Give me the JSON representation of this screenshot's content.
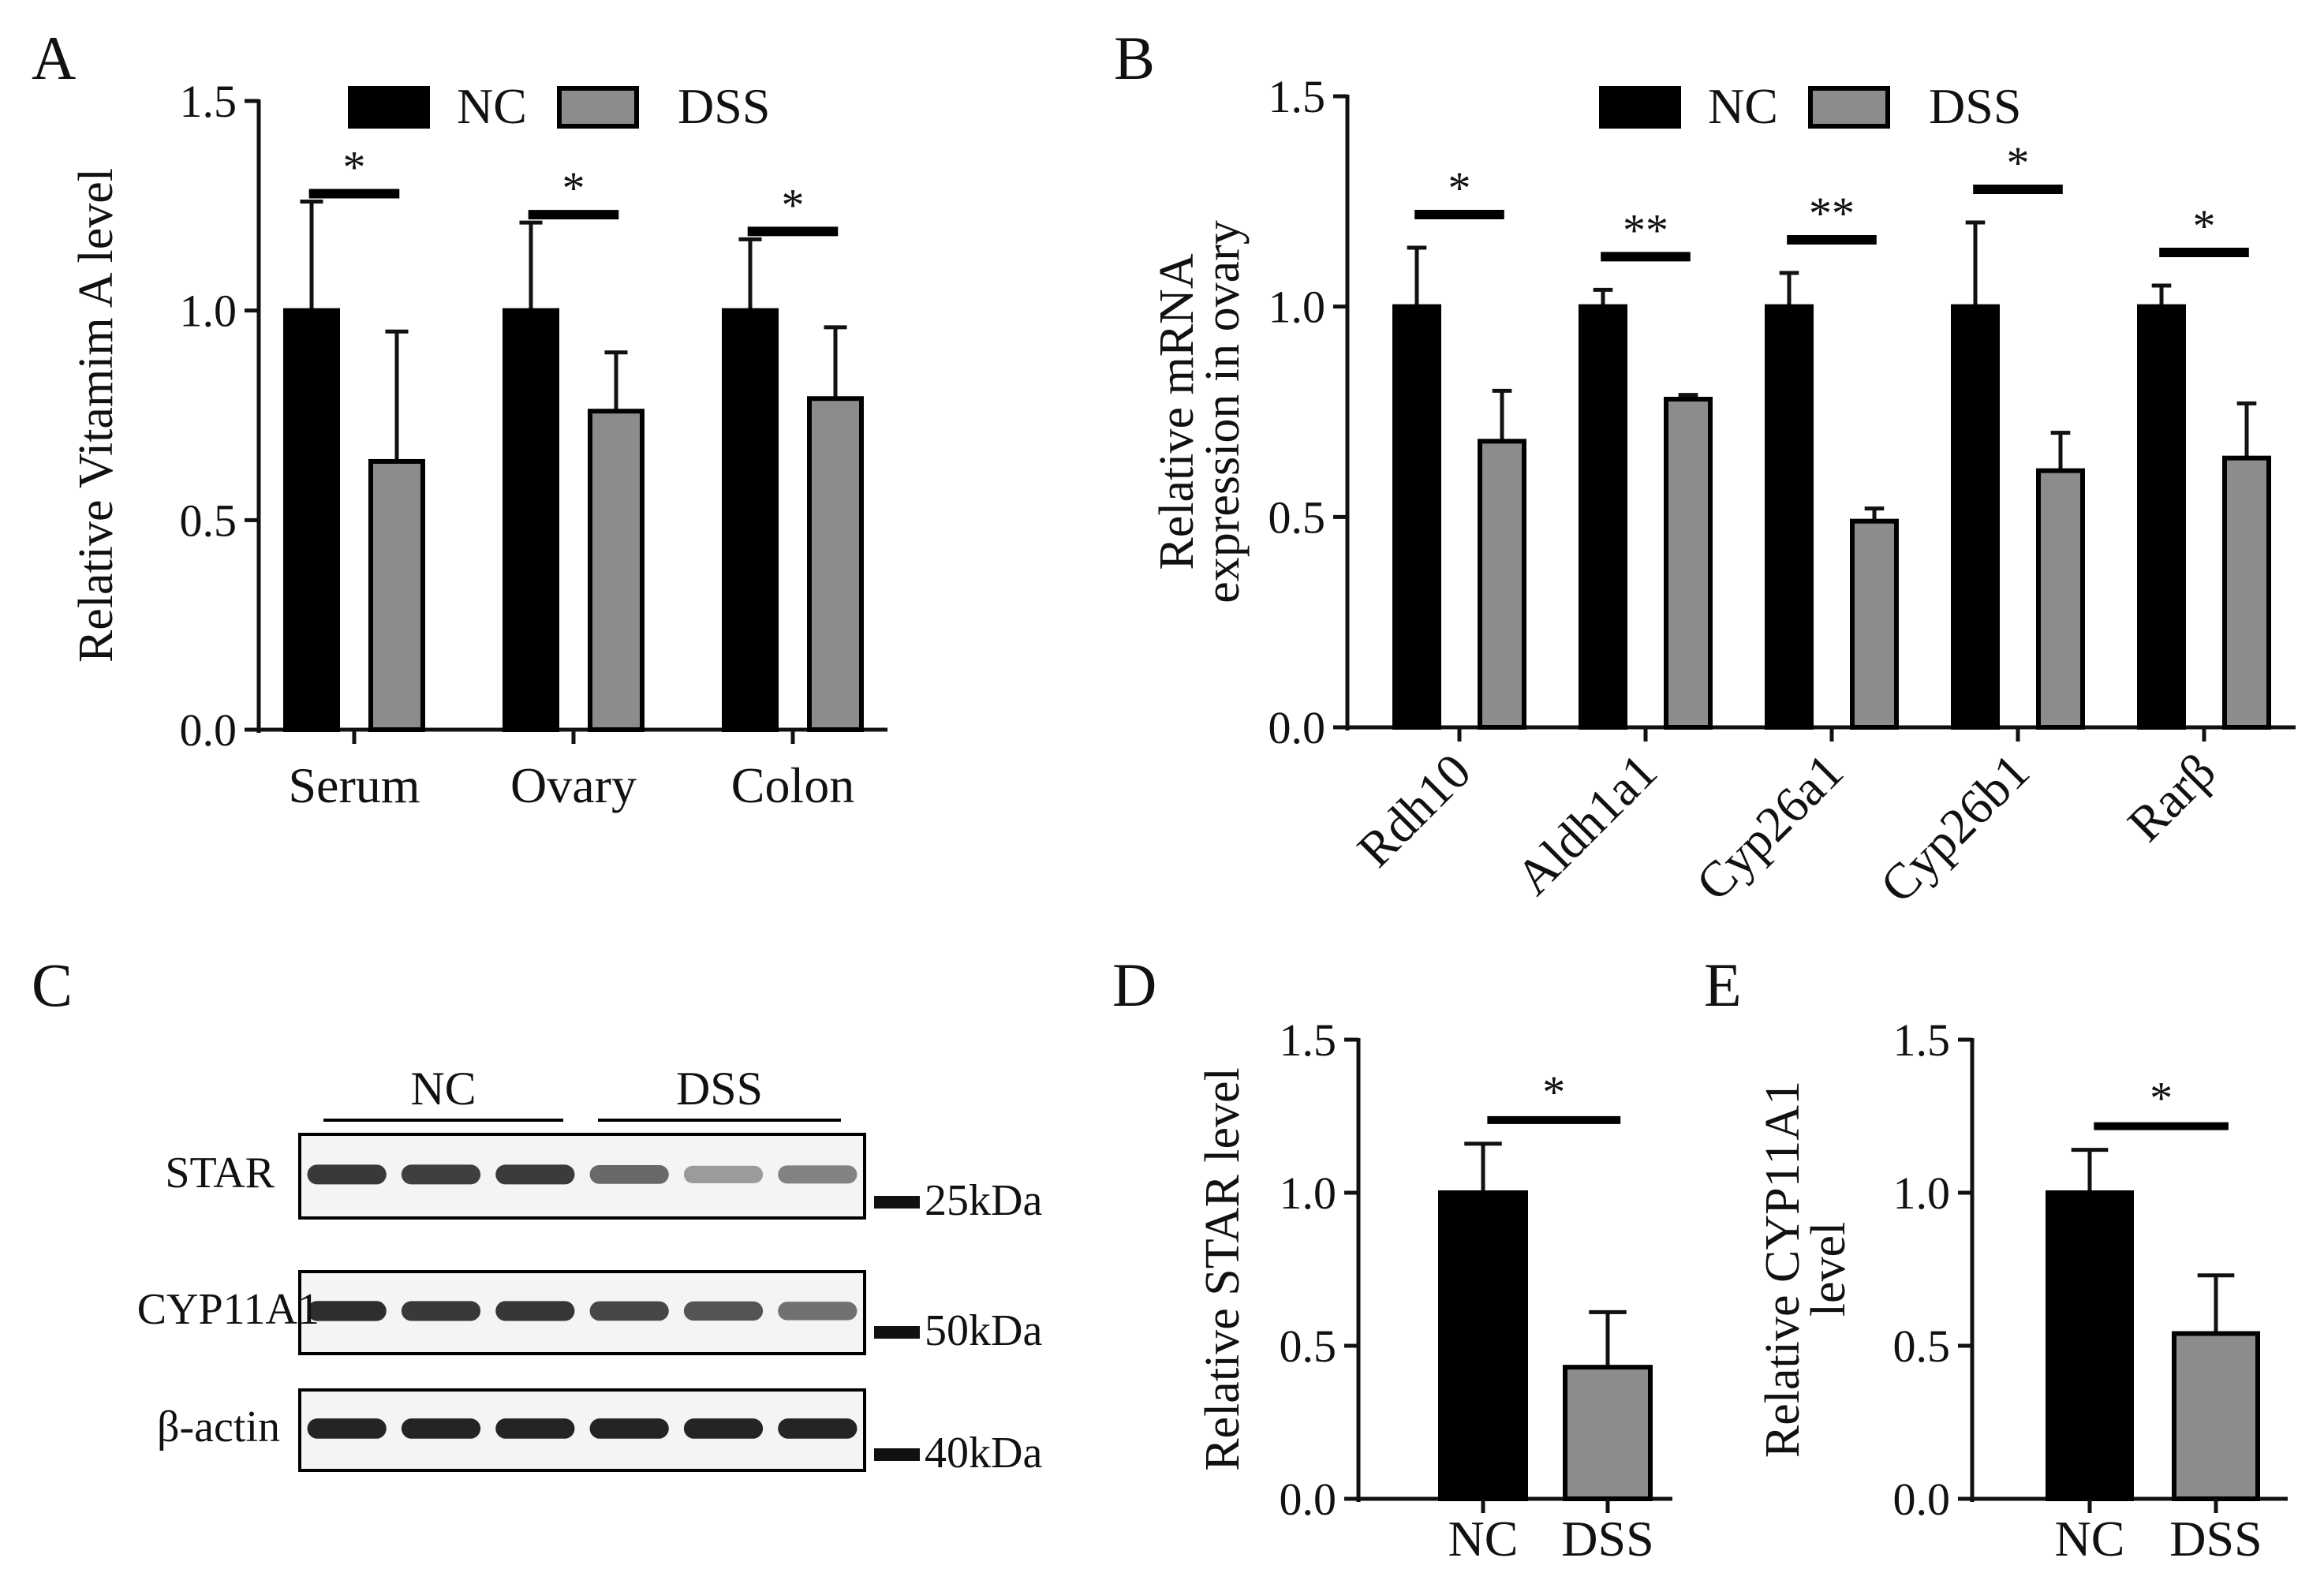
{
  "colors": {
    "nc": "#000000",
    "dss": "#8c8c8c",
    "axis": "#111111"
  },
  "chart_data": [
    {
      "panel": "A",
      "type": "bar",
      "title": "",
      "xlabel": "",
      "ylabel": "Relative Vitamim A level",
      "ylim": [
        0,
        1.5
      ],
      "yticks": [
        "0.0",
        "0.5",
        "1.0",
        "1.5"
      ],
      "categories": [
        "Serum",
        "Ovary",
        "Colon"
      ],
      "legend": [
        "NC",
        "DSS"
      ],
      "legend_position": "top-center",
      "series": [
        {
          "name": "NC",
          "values": [
            1.0,
            1.0,
            1.0
          ],
          "errors": [
            0.26,
            0.21,
            0.17
          ]
        },
        {
          "name": "DSS",
          "values": [
            0.64,
            0.76,
            0.79
          ],
          "errors": [
            0.31,
            0.14,
            0.17
          ]
        }
      ],
      "significance": [
        "*",
        "*",
        "*"
      ]
    },
    {
      "panel": "B",
      "type": "bar",
      "title": "",
      "xlabel": "",
      "ylabel": [
        "Relative mRNA",
        "expression in ovary"
      ],
      "ylim": [
        0,
        1.5
      ],
      "yticks": [
        "0.0",
        "0.5",
        "1.0",
        "1.5"
      ],
      "categories": [
        "Rdh10",
        "Aldh1a1",
        "Cyp26a1",
        "Cyp26b1",
        "Rarβ"
      ],
      "legend": [
        "NC",
        "DSS"
      ],
      "legend_position": "top-center",
      "series": [
        {
          "name": "NC",
          "values": [
            1.0,
            1.0,
            1.0,
            1.0,
            1.0
          ],
          "errors": [
            0.14,
            0.04,
            0.08,
            0.2,
            0.05
          ]
        },
        {
          "name": "DSS",
          "values": [
            0.68,
            0.78,
            0.49,
            0.61,
            0.64
          ],
          "errors": [
            0.12,
            0.01,
            0.03,
            0.09,
            0.13
          ]
        }
      ],
      "significance": [
        "*",
        "**",
        "**",
        "*",
        "*"
      ]
    },
    {
      "panel": "D",
      "type": "bar",
      "title": "",
      "xlabel": "",
      "ylabel": "Relative STAR level",
      "ylim": [
        0,
        1.5
      ],
      "yticks": [
        "0.0",
        "0.5",
        "1.0",
        "1.5"
      ],
      "categories": [
        "NC",
        "DSS"
      ],
      "values": [
        1.0,
        0.43
      ],
      "errors": [
        0.16,
        0.18
      ],
      "significance": "*"
    },
    {
      "panel": "E",
      "type": "bar",
      "title": "",
      "xlabel": "",
      "ylabel": [
        "Relative CYP11A1",
        "level"
      ],
      "ylim": [
        0,
        1.5
      ],
      "yticks": [
        "0.0",
        "0.5",
        "1.0",
        "1.5"
      ],
      "categories": [
        "NC",
        "DSS"
      ],
      "values": [
        1.0,
        0.54
      ],
      "errors": [
        0.14,
        0.19
      ],
      "significance": "*"
    }
  ],
  "blot": {
    "panel": "C",
    "groups": [
      "NC",
      "DSS"
    ],
    "rows": [
      {
        "label": "STAR",
        "mw": "25kDa",
        "intensity": [
          0.85,
          0.82,
          0.84,
          0.62,
          0.38,
          0.5
        ]
      },
      {
        "label": "CYP11A1",
        "mw": "50kDa",
        "intensity": [
          0.9,
          0.85,
          0.86,
          0.78,
          0.72,
          0.58
        ]
      },
      {
        "label": "β-actin",
        "mw": "40kDa",
        "intensity": [
          0.95,
          0.95,
          0.95,
          0.95,
          0.95,
          0.95
        ]
      }
    ]
  }
}
